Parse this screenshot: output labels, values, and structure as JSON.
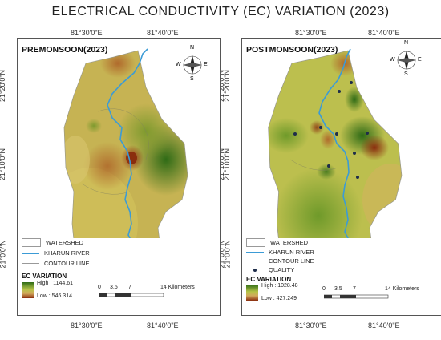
{
  "title": "ELECTRICAL CONDUCTIVITY (EC) VARIATION (2023)",
  "axes": {
    "top_ticks": [
      "81°30'0\"E",
      "81°40'0\"E"
    ],
    "bottom_ticks": [
      "81°30'0\"E",
      "81°40'0\"E"
    ],
    "lat_ticks": [
      "21°20'0\"N",
      "21°10'0\"N",
      "21°0'0\"N"
    ]
  },
  "compass": {
    "n": "N",
    "s": "S",
    "e": "E",
    "w": "W"
  },
  "colors": {
    "high": "#2f6b16",
    "mid": "#c9c24a",
    "low": "#8a2d0e",
    "river": "#3b9bd6"
  },
  "maps": [
    {
      "season": "PREMONSOON(2023)",
      "legend": {
        "watershed": "WATERSHED",
        "river": "KHARUN RIVER",
        "contour": "CONTOUR LINE",
        "ec_title": "EC VARIATION",
        "high": "High : 1144.61",
        "low": "Low : 546.314"
      },
      "scale": {
        "ticks": [
          "0",
          "3.5",
          "7",
          "14 Kilometers"
        ]
      }
    },
    {
      "season": "POSTMONSOON(2023)",
      "legend": {
        "watershed": "WATERSHED",
        "river": "KHARUN RIVER",
        "contour": "CONTOUR LINE",
        "quality": "QUALITY",
        "ec_title": "EC VARIATION",
        "high": "High : 1028.48",
        "low": "Low : 427.249"
      },
      "scale": {
        "ticks": [
          "0",
          "3.5",
          "7",
          "14 Kilometers"
        ]
      }
    }
  ]
}
